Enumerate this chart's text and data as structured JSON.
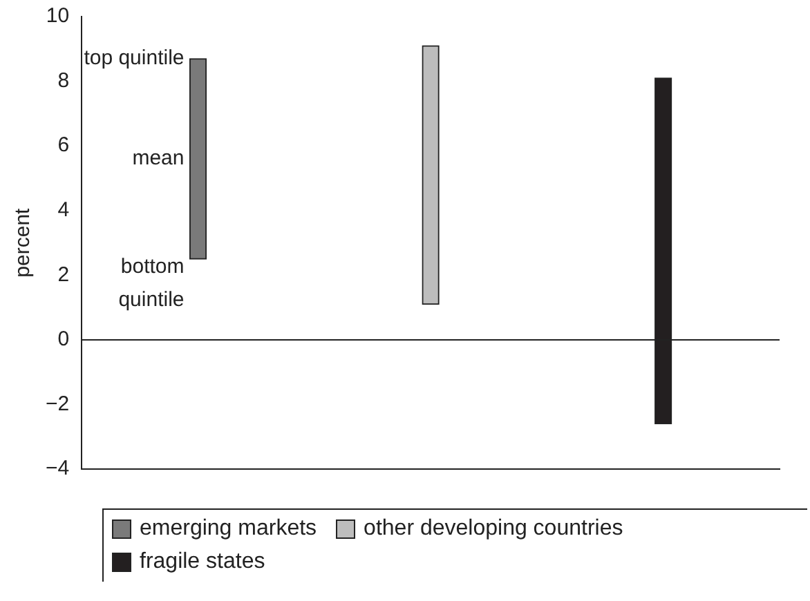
{
  "chart_data": {
    "type": "bar",
    "ylabel": "percent",
    "categories": [
      null,
      null,
      null
    ],
    "series": [
      {
        "name": "emerging markets",
        "color": "#7a7a7a",
        "values": [
          6.2,
          null,
          null
        ],
        "base": [
          2.5,
          null,
          null
        ]
      },
      {
        "name": "other developing countries",
        "color": "#bdbdbd",
        "values": [
          null,
          8.0,
          null
        ],
        "base": [
          null,
          1.1,
          null
        ]
      },
      {
        "name": "fragile states",
        "color": "#231f20",
        "values": [
          null,
          null,
          10.7
        ],
        "base": [
          null,
          null,
          -2.6
        ]
      }
    ],
    "ylim": [
      -4,
      10
    ],
    "yticks": [
      {
        "value": -4,
        "label": "−4"
      },
      {
        "value": -2,
        "label": "−2"
      },
      0,
      2,
      4,
      6,
      8,
      10
    ],
    "ref_lines": [
      {
        "axis": "y",
        "value": 0
      }
    ],
    "annotations": [
      "top quintile",
      "mean",
      "bottom quintile"
    ],
    "grid": false,
    "legend": "bottom"
  }
}
